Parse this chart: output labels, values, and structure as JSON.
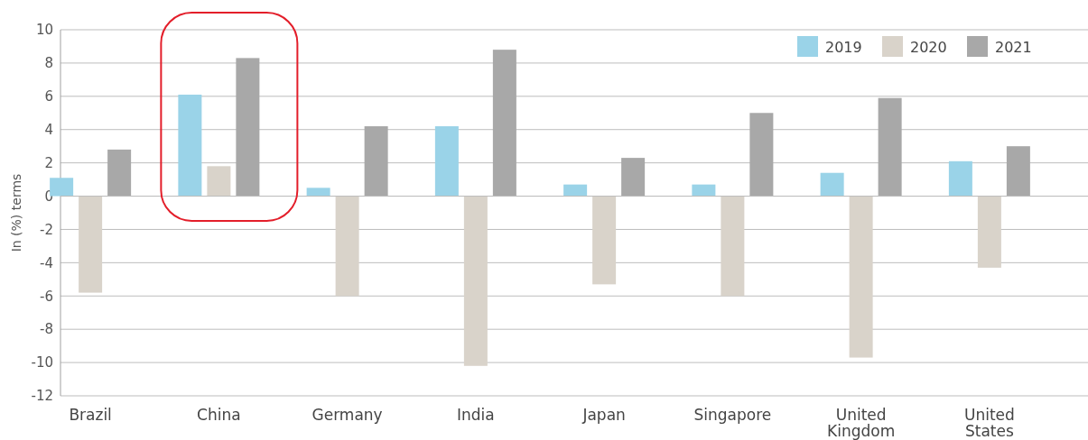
{
  "chart_data": {
    "type": "bar",
    "ylabel": "In (%) terms",
    "categories": [
      "Brazil",
      "China",
      "Germany",
      "India",
      "Japan",
      "Singapore",
      "United Kingdom",
      "United States"
    ],
    "series": [
      {
        "name": "2019",
        "color": "#9ad3e8",
        "values": [
          1.1,
          6.1,
          0.5,
          4.2,
          0.7,
          0.7,
          1.4,
          2.1
        ]
      },
      {
        "name": "2020",
        "color": "#d9d3ca",
        "values": [
          -5.8,
          1.8,
          -6.0,
          -10.2,
          -5.3,
          -6.0,
          -9.7,
          -4.3
        ]
      },
      {
        "name": "2021",
        "color": "#a8a8a8",
        "values": [
          2.8,
          8.3,
          4.2,
          8.8,
          2.3,
          5.0,
          5.9,
          3.0
        ]
      }
    ],
    "ylim": [
      -12,
      10
    ],
    "yticks": [
      -12,
      -10,
      -8,
      -6,
      -4,
      -2,
      0,
      2,
      4,
      6,
      8,
      10
    ],
    "grid": "y",
    "legend": "top right"
  }
}
